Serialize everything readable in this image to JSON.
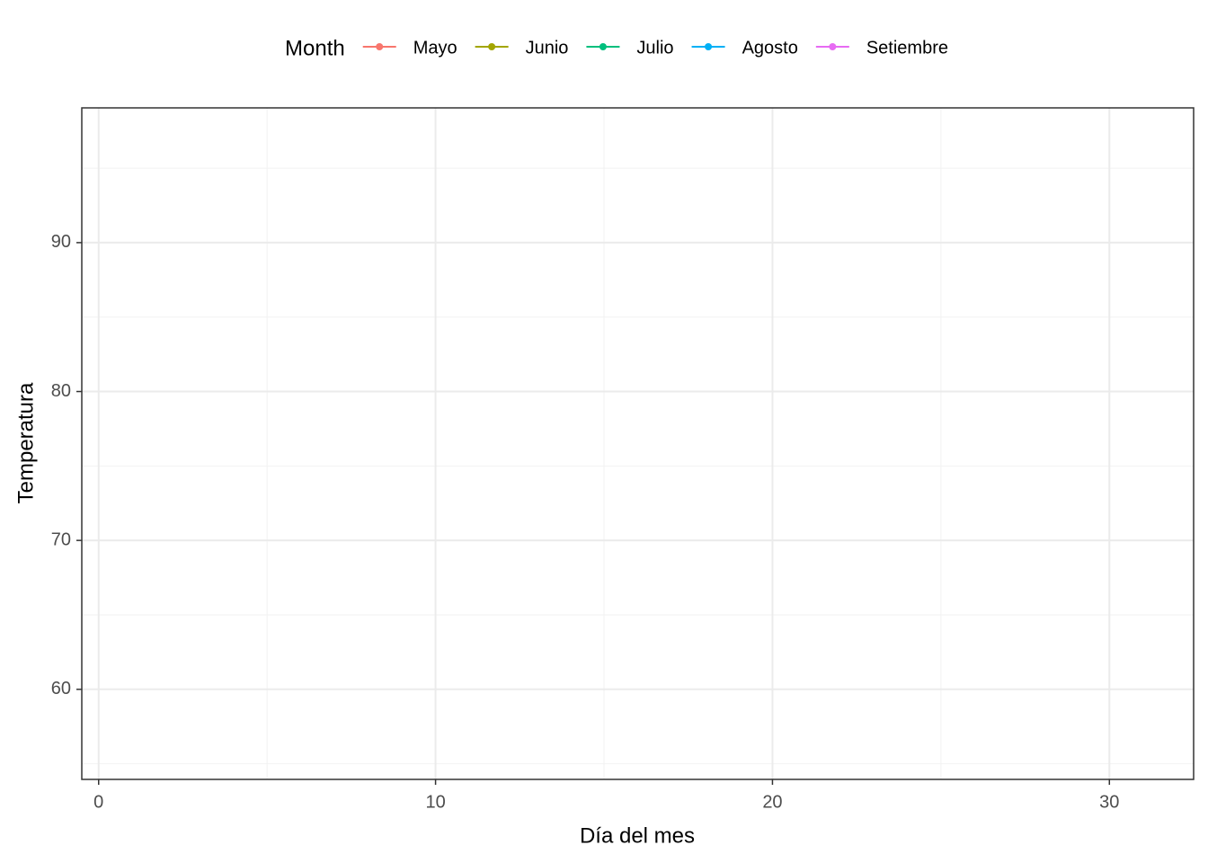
{
  "chart_data": {
    "type": "line",
    "x_label": "Día del mes",
    "y_label": "Temperatura",
    "legend_title": "Month",
    "legend_position": "top",
    "x": [],
    "series": [
      {
        "name": "Mayo",
        "color": "#F8766D",
        "values": []
      },
      {
        "name": "Junio",
        "color": "#A3A500",
        "values": []
      },
      {
        "name": "Julio",
        "color": "#00BF7D",
        "values": []
      },
      {
        "name": "Agosto",
        "color": "#00B0F6",
        "values": []
      },
      {
        "name": "Setiembre",
        "color": "#E76BF3",
        "values": []
      }
    ],
    "xlim": [
      -0.5,
      32.5
    ],
    "xticks": [
      0,
      10,
      20,
      30
    ],
    "xminorticks": [
      5,
      15,
      25
    ],
    "ylim": [
      53.95,
      99.05
    ],
    "yticks": [
      60,
      70,
      80,
      90
    ],
    "yminorticks": [
      55,
      65,
      75,
      85,
      95
    ],
    "grid": true
  }
}
